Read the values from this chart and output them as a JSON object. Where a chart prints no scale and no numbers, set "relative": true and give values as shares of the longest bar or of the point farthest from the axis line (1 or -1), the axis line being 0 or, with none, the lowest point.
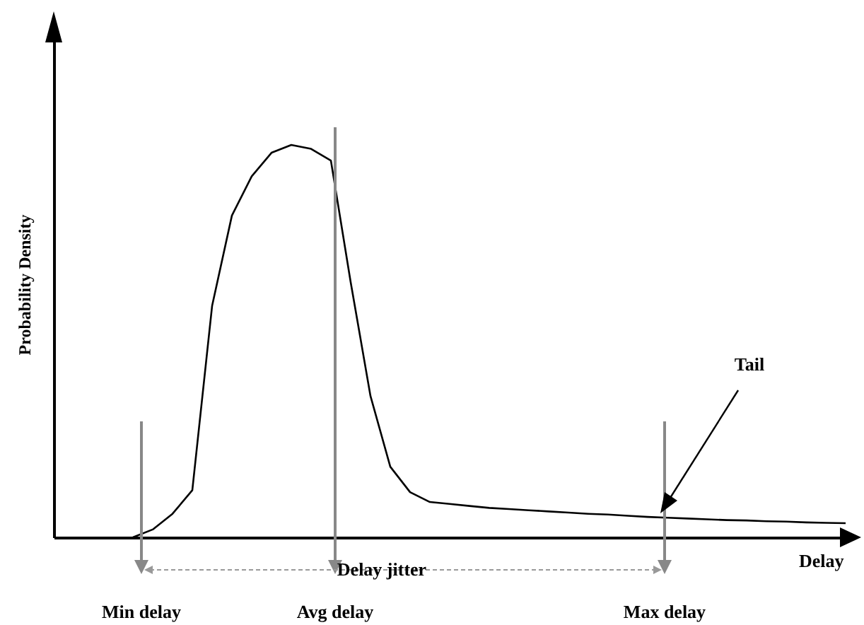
{
  "chart_data": {
    "type": "line",
    "relative": true,
    "xlabel": "Delay",
    "ylabel": "Probability Density",
    "line_style": "solid",
    "categories": [
      null,
      null,
      null,
      null,
      null,
      null,
      null,
      null,
      null,
      null,
      null,
      null,
      null,
      null,
      null,
      null,
      null,
      null,
      null,
      null,
      null,
      null,
      null,
      null,
      null,
      null,
      null,
      null,
      null,
      null,
      null,
      null,
      null,
      null,
      null,
      null,
      null,
      null,
      null,
      null,
      null
    ],
    "series": [
      {
        "color": "#000000",
        "values": [
          null,
          null,
          null,
          null,
          0,
          0.02,
          0.06,
          0.12,
          0.59,
          0.82,
          0.92,
          0.98,
          1,
          0.99,
          0.96,
          0.65,
          0.36,
          0.18,
          0.115,
          0.09,
          0.085,
          0.08,
          0.075,
          0.072,
          0.069,
          0.066,
          0.063,
          0.06,
          0.058,
          0.055,
          0.052,
          0.05,
          0.048,
          0.046,
          0.044,
          0.043,
          0.041,
          0.04,
          0.038,
          0.037,
          0.036
        ]
      }
    ],
    "annotations": [
      "Min delay",
      "Avg delay",
      "Max delay",
      "Delay jitter",
      "Tail"
    ]
  }
}
